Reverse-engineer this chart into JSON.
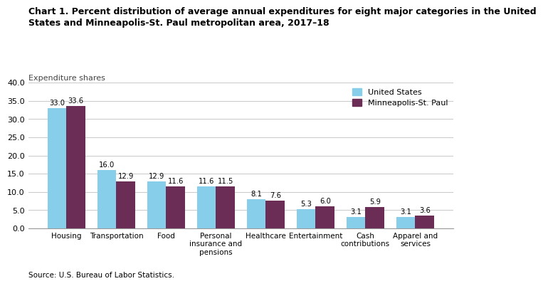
{
  "title": "Chart 1. Percent distribution of average annual expenditures for eight major categories in the United\nStates and Minneapolis-St. Paul metropolitan area, 2017–18",
  "subtitle": "Expenditure shares",
  "source": "Source: U.S. Bureau of Labor Statistics.",
  "categories": [
    "Housing",
    "Transportation",
    "Food",
    "Personal\ninsurance and\npensions",
    "Healthcare",
    "Entertainment",
    "Cash\ncontributions",
    "Apparel and\nservices"
  ],
  "us_values": [
    33.0,
    16.0,
    12.9,
    11.6,
    8.1,
    5.3,
    3.1,
    3.1
  ],
  "msp_values": [
    33.6,
    12.9,
    11.6,
    11.5,
    7.6,
    6.0,
    5.9,
    3.6
  ],
  "us_color": "#87CEEB",
  "msp_color": "#6B2D56",
  "us_label": "United States",
  "msp_label": "Minneapolis-St. Paul",
  "ylim": [
    0,
    40
  ],
  "yticks": [
    0.0,
    5.0,
    10.0,
    15.0,
    20.0,
    25.0,
    30.0,
    35.0,
    40.0
  ],
  "bar_width": 0.38,
  "title_fontsize": 9.0,
  "subtitle_fontsize": 8.0,
  "tick_fontsize": 8.0,
  "label_fontsize": 7.5,
  "legend_fontsize": 8.0,
  "value_fontsize": 7.2,
  "source_fontsize": 7.5,
  "background_color": "#ffffff",
  "grid_color": "#cccccc"
}
